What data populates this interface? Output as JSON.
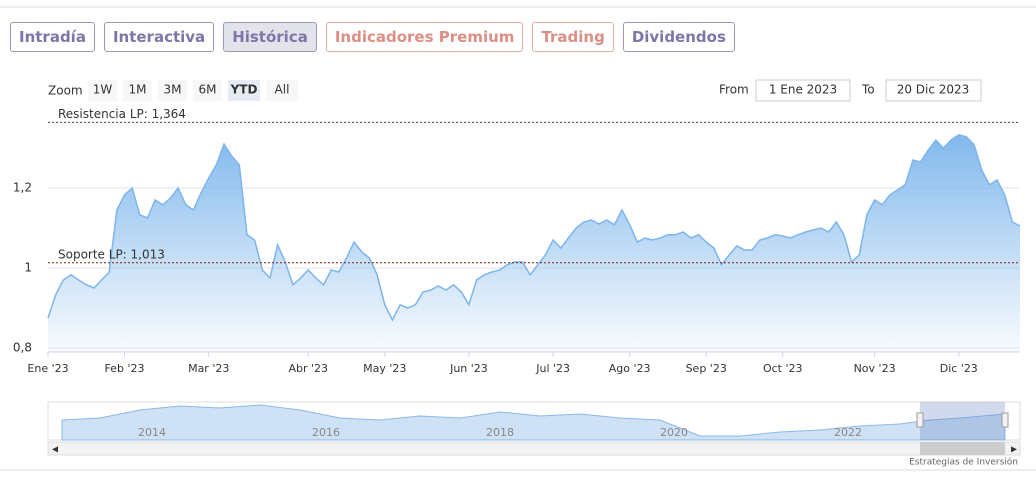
{
  "tabs": [
    {
      "label": "Intradía",
      "active": false,
      "premium": false
    },
    {
      "label": "Interactiva",
      "active": false,
      "premium": false
    },
    {
      "label": "Histórica",
      "active": true,
      "premium": false
    },
    {
      "label": "Indicadores Premium",
      "active": false,
      "premium": true
    },
    {
      "label": "Trading",
      "active": false,
      "premium": true
    },
    {
      "label": "Dividendos",
      "active": false,
      "premium": false
    }
  ],
  "range_selector": {
    "zoom_label": "Zoom",
    "buttons": [
      "1W",
      "1M",
      "3M",
      "6M",
      "YTD",
      "All"
    ],
    "active": 4,
    "from_label": "From",
    "from": "1 Ene 2023",
    "to_label": "To",
    "to": "20 Dic 2023"
  },
  "navigator": {
    "labels": [
      "2014",
      "2016",
      "2018",
      "2020",
      "2022"
    ]
  },
  "credits": "Estrategias de Inversión",
  "chart_data": {
    "type": "area",
    "color": "#7cb5ec",
    "categories": [
      "Ene '23",
      null,
      null,
      null,
      null,
      null,
      null,
      null,
      null,
      null,
      "Feb '23",
      null,
      null,
      null,
      null,
      null,
      null,
      null,
      null,
      null,
      null,
      "Mar '23",
      null,
      null,
      null,
      null,
      null,
      null,
      null,
      null,
      null,
      null,
      null,
      null,
      "Abr '23",
      null,
      null,
      null,
      null,
      null,
      null,
      null,
      null,
      null,
      "May '23",
      null,
      null,
      null,
      null,
      null,
      null,
      null,
      null,
      null,
      null,
      "Jun '23",
      null,
      null,
      null,
      null,
      null,
      null,
      null,
      null,
      null,
      null,
      "Jul '23",
      null,
      null,
      null,
      null,
      null,
      null,
      null,
      null,
      null,
      "Ago '23",
      null,
      null,
      null,
      null,
      null,
      null,
      null,
      null,
      null,
      "Sep '23",
      null,
      null,
      null,
      null,
      null,
      null,
      null,
      null,
      null,
      "Oct '23",
      null,
      null,
      null,
      null,
      null,
      null,
      null,
      null,
      null,
      null,
      null,
      "Nov '23",
      null,
      null,
      null,
      null,
      null,
      null,
      null,
      null,
      null,
      null,
      "Dic '23",
      null,
      null,
      null,
      null,
      null,
      null,
      null,
      null
    ],
    "values": [
      0.875,
      0.933,
      0.97,
      0.983,
      0.97,
      0.958,
      0.95,
      0.97,
      0.99,
      1.145,
      1.183,
      1.2,
      1.133,
      1.125,
      1.17,
      1.158,
      1.175,
      1.2,
      1.158,
      1.145,
      1.188,
      1.225,
      1.258,
      1.31,
      1.28,
      1.258,
      1.083,
      1.07,
      0.995,
      0.975,
      1.058,
      1.015,
      0.958,
      0.975,
      0.995,
      0.975,
      0.958,
      0.995,
      0.99,
      1.025,
      1.065,
      1.04,
      1.025,
      0.983,
      0.908,
      0.87,
      0.908,
      0.9,
      0.908,
      0.94,
      0.945,
      0.955,
      0.945,
      0.958,
      0.94,
      0.908,
      0.97,
      0.983,
      0.99,
      0.995,
      1.008,
      1.015,
      1.015,
      0.983,
      1.008,
      1.033,
      1.07,
      1.05,
      1.075,
      1.1,
      1.115,
      1.12,
      1.11,
      1.12,
      1.108,
      1.145,
      1.108,
      1.065,
      1.075,
      1.07,
      1.075,
      1.083,
      1.083,
      1.09,
      1.075,
      1.083,
      1.065,
      1.05,
      1.008,
      1.033,
      1.055,
      1.045,
      1.045,
      1.07,
      1.075,
      1.083,
      1.08,
      1.075,
      1.083,
      1.09,
      1.095,
      1.1,
      1.09,
      1.115,
      1.083,
      1.015,
      1.033,
      1.133,
      1.17,
      1.158,
      1.183,
      1.195,
      1.208,
      1.27,
      1.265,
      1.295,
      1.32,
      1.3,
      1.32,
      1.333,
      1.328,
      1.308,
      1.245,
      1.208,
      1.22,
      1.183,
      1.115,
      1.105
    ],
    "ylim": [
      0.79,
      1.39
    ],
    "yticks": [
      {
        "value": 0.8,
        "label": "0,8"
      },
      1,
      {
        "value": 1.2,
        "label": "1,2"
      }
    ],
    "grid": true,
    "plot_lines": [
      {
        "label": "Resistencia LP: 1,364",
        "value": 1.364,
        "color": "#2f4f2f"
      },
      {
        "label": "Soporte LP: 1,013",
        "value": 1.013,
        "color": "#7a1f1f"
      }
    ]
  }
}
